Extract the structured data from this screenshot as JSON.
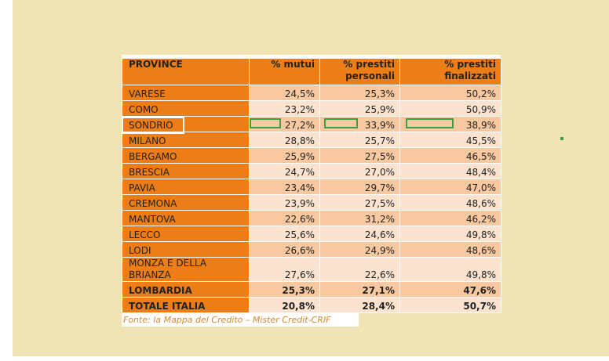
{
  "table": {
    "header": [
      "PROVINCE",
      "% mutui",
      "% prestiti personali",
      "% prestiti finalizzati"
    ],
    "rows": [
      [
        "VARESE",
        "24,5%",
        "25,3%",
        "50,2%"
      ],
      [
        "COMO",
        "23,2%",
        "25,9%",
        "50,9%"
      ],
      [
        "SONDRIO",
        "27,2%",
        "33,9%",
        "38,9%"
      ],
      [
        "MILANO",
        "28,8%",
        "25,7%",
        "45,5%"
      ],
      [
        "BERGAMO",
        "25,9%",
        "27,5%",
        "46,5%"
      ],
      [
        "BRESCIA",
        "24,7%",
        "27,0%",
        "48,4%"
      ],
      [
        "PAVIA",
        "23,4%",
        "29,7%",
        "47,0%"
      ],
      [
        "CREMONA",
        "23,9%",
        "27,5%",
        "48,6%"
      ],
      [
        "MANTOVA",
        "22,6%",
        "31,2%",
        "46,2%"
      ],
      [
        "LECCO",
        "25,6%",
        "24,6%",
        "49,8%"
      ],
      [
        "LODI",
        "26,6%",
        "24,9%",
        "48,6%"
      ],
      [
        "MONZA E DELLA BRIANZA",
        "27,6%",
        "22,6%",
        "49,8%"
      ]
    ],
    "totals": [
      [
        "LOMBARDIA",
        "25,3%",
        "27,1%",
        "47,6%"
      ],
      [
        "TOTALE ITALIA",
        "20,8%",
        "28,4%",
        "50,7%"
      ]
    ],
    "source": "Fonte: la Mappa del Credito – Mister Credit-CRIF"
  }
}
